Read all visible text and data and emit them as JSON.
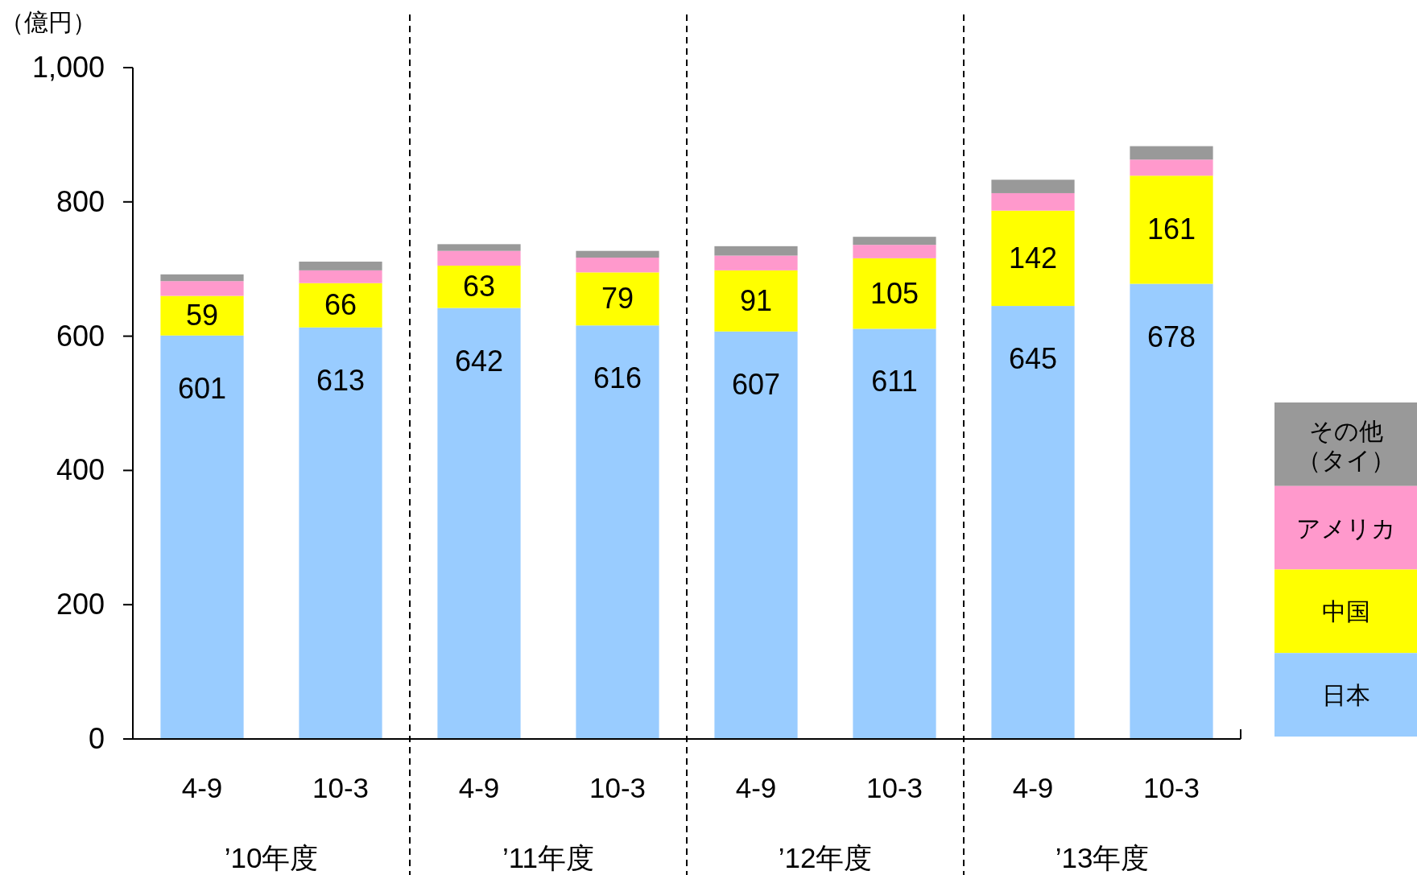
{
  "chart_data": {
    "type": "bar",
    "stacked": true,
    "ylabel": "（億円）",
    "categories": [
      "4-9",
      "10-3",
      "4-9",
      "10-3",
      "4-9",
      "10-3",
      "4-9",
      "10-3"
    ],
    "annotations": [
      "’10年度",
      "’11年度",
      "’12年度",
      "’13年度"
    ],
    "ylim": [
      0,
      1000
    ],
    "yticks": [
      0,
      200,
      400,
      600,
      800,
      {
        "value": 1000,
        "label": "1,000"
      }
    ],
    "legend": "right",
    "grid": false,
    "series": [
      {
        "name": "日本",
        "color": "#99ccff",
        "values": [
          601,
          613,
          642,
          616,
          607,
          611,
          645,
          678
        ],
        "value_labels": [
          "601",
          "613",
          "642",
          "616",
          "607",
          "611",
          "645",
          "678"
        ]
      },
      {
        "name": "中国",
        "color": "#ffff00",
        "values": [
          59,
          66,
          63,
          79,
          91,
          105,
          142,
          161
        ],
        "value_labels": [
          "59",
          "66",
          "63",
          "79",
          "91",
          "105",
          "142",
          "161"
        ]
      },
      {
        "name": "アメリカ",
        "color": "#ff99cc",
        "values": [
          22,
          19,
          22,
          22,
          22,
          20,
          26,
          24
        ]
      },
      {
        "name": "その他（タイ）",
        "color": "#999999",
        "values": [
          10,
          13,
          10,
          10,
          14,
          12,
          20,
          20
        ]
      }
    ]
  }
}
